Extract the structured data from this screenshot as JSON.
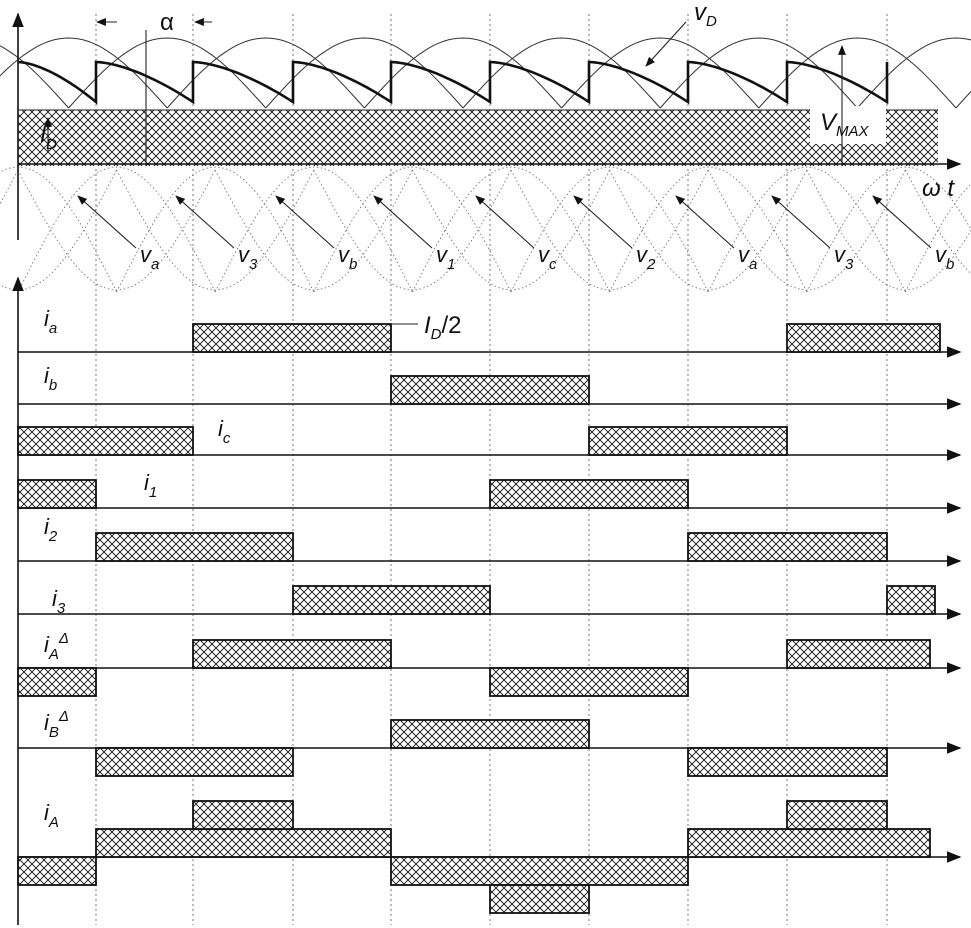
{
  "labels": {
    "alpha": "α",
    "vD": {
      "base": "v",
      "sub": "D"
    },
    "ID": {
      "base": "I",
      "sub": "D"
    },
    "VMAX": {
      "base": "V",
      "sub": "MAX"
    },
    "omega_t": "ω t",
    "ID_half": "I",
    "ID_half_sub": "D",
    "ID_half_tail": "/2",
    "phase_labels": [
      {
        "base": "v",
        "sub": "a"
      },
      {
        "base": "v",
        "sub": "3"
      },
      {
        "base": "v",
        "sub": "b"
      },
      {
        "base": "v",
        "sub": "1"
      },
      {
        "base": "v",
        "sub": "c"
      },
      {
        "base": "v",
        "sub": "2"
      },
      {
        "base": "v",
        "sub": "a"
      },
      {
        "base": "v",
        "sub": "3"
      },
      {
        "base": "v",
        "sub": "b"
      }
    ],
    "currents": [
      {
        "base": "i",
        "sub": "a",
        "sup": ""
      },
      {
        "base": "i",
        "sub": "b",
        "sup": ""
      },
      {
        "base": "i",
        "sub": "c",
        "sup": ""
      },
      {
        "base": "i",
        "sub": "1",
        "sup": ""
      },
      {
        "base": "i",
        "sub": "2",
        "sup": ""
      },
      {
        "base": "i",
        "sub": "3",
        "sup": ""
      },
      {
        "base": "i",
        "sub": "A",
        "sup": "Δ"
      },
      {
        "base": "i",
        "sub": "B",
        "sup": "Δ"
      },
      {
        "base": "i",
        "sub": "A",
        "sup": ""
      }
    ]
  }
}
